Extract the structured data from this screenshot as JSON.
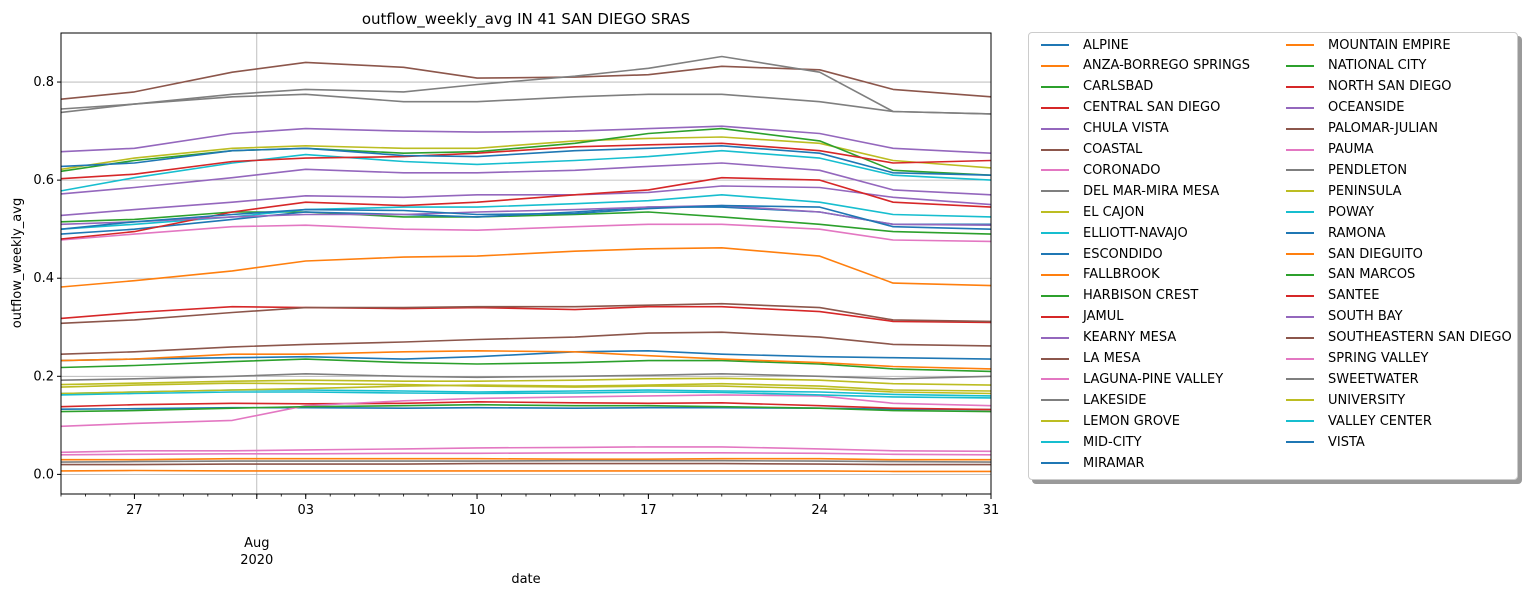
{
  "chart_data": {
    "type": "line",
    "title": "outflow_weekly_avg IN 41 SAN DIEGO SRAS",
    "xlabel": "date",
    "ylabel": "outflow_weekly_avg",
    "x_start": "2020-07-24",
    "x_end": "2020-08-31",
    "ylim": [
      -0.04,
      0.9
    ],
    "grid": true,
    "legend_placement": "outside right",
    "x_ticks": [
      {
        "date": "2020-07-27",
        "label": "27"
      },
      {
        "date": "2020-08-01",
        "label": "Aug"
      },
      {
        "date": "2020-08-03",
        "label": "03"
      },
      {
        "date": "2020-08-10",
        "label": "10"
      },
      {
        "date": "2020-08-17",
        "label": "17"
      },
      {
        "date": "2020-08-24",
        "label": "24"
      },
      {
        "date": "2020-08-31",
        "label": "31"
      }
    ],
    "x_year_label": "2020",
    "y_ticks": [
      0.0,
      0.2,
      0.4,
      0.6,
      0.8
    ],
    "y_tick_labels": [
      "0.0",
      "0.2",
      "0.4",
      "0.6",
      "0.8"
    ],
    "x": [
      "2020-07-24",
      "2020-07-27",
      "2020-07-31",
      "2020-08-03",
      "2020-08-07",
      "2020-08-10",
      "2020-08-14",
      "2020-08-17",
      "2020-08-20",
      "2020-08-24",
      "2020-08-27",
      "2020-08-31"
    ],
    "series": [
      {
        "name": "ALPINE",
        "color": "#1f77b4",
        "values": [
          0.133,
          0.134,
          0.136,
          0.136,
          0.135,
          0.136,
          0.135,
          0.136,
          0.136,
          0.135,
          0.133,
          0.132
        ]
      },
      {
        "name": "ANZA-BORREGO SPRINGS",
        "color": "#ff7f0e",
        "values": [
          0.007,
          0.008,
          0.007,
          0.007,
          0.007,
          0.007,
          0.007,
          0.007,
          0.007,
          0.007,
          0.006,
          0.006
        ]
      },
      {
        "name": "CARLSBAD",
        "color": "#2ca02c",
        "values": [
          0.515,
          0.52,
          0.535,
          0.535,
          0.525,
          0.525,
          0.53,
          0.535,
          0.525,
          0.51,
          0.495,
          0.49
        ]
      },
      {
        "name": "CENTRAL SAN DIEGO",
        "color": "#d62728",
        "values": [
          0.138,
          0.142,
          0.145,
          0.144,
          0.145,
          0.148,
          0.146,
          0.145,
          0.146,
          0.14,
          0.135,
          0.132
        ]
      },
      {
        "name": "CHULA VISTA",
        "color": "#9467bd",
        "values": [
          0.528,
          0.54,
          0.555,
          0.568,
          0.565,
          0.57,
          0.57,
          0.575,
          0.588,
          0.585,
          0.565,
          0.55
        ]
      },
      {
        "name": "COASTAL",
        "color": "#8c564b",
        "values": [
          0.245,
          0.25,
          0.26,
          0.265,
          0.27,
          0.275,
          0.28,
          0.288,
          0.29,
          0.28,
          0.265,
          0.262
        ]
      },
      {
        "name": "CORONADO",
        "color": "#e377c2",
        "values": [
          0.045,
          0.048,
          0.048,
          0.05,
          0.052,
          0.054,
          0.055,
          0.056,
          0.056,
          0.052,
          0.048,
          0.047
        ]
      },
      {
        "name": "DEL MAR-MIRA MESA",
        "color": "#7f7f7f",
        "values": [
          0.745,
          0.755,
          0.77,
          0.775,
          0.76,
          0.76,
          0.77,
          0.775,
          0.775,
          0.76,
          0.74,
          0.735
        ]
      },
      {
        "name": "EL CAJON",
        "color": "#bcbd22",
        "values": [
          0.178,
          0.182,
          0.186,
          0.185,
          0.183,
          0.18,
          0.178,
          0.18,
          0.18,
          0.175,
          0.168,
          0.165
        ]
      },
      {
        "name": "ELLIOTT-NAVAJO",
        "color": "#17becf",
        "values": [
          0.165,
          0.168,
          0.172,
          0.172,
          0.17,
          0.168,
          0.17,
          0.172,
          0.17,
          0.168,
          0.163,
          0.16
        ]
      },
      {
        "name": "ESCONDIDO",
        "color": "#1f77b4",
        "values": [
          0.232,
          0.235,
          0.238,
          0.24,
          0.235,
          0.24,
          0.25,
          0.252,
          0.245,
          0.24,
          0.238,
          0.235
        ]
      },
      {
        "name": "FALLBROOK",
        "color": "#ff7f0e",
        "values": [
          0.382,
          0.395,
          0.415,
          0.435,
          0.443,
          0.445,
          0.455,
          0.46,
          0.462,
          0.445,
          0.39,
          0.385
        ]
      },
      {
        "name": "HARBISON CREST",
        "color": "#2ca02c",
        "values": [
          0.218,
          0.222,
          0.23,
          0.235,
          0.228,
          0.225,
          0.228,
          0.232,
          0.232,
          0.225,
          0.215,
          0.21
        ]
      },
      {
        "name": "JAMUL",
        "color": "#d62728",
        "values": [
          0.318,
          0.33,
          0.342,
          0.34,
          0.338,
          0.34,
          0.336,
          0.342,
          0.342,
          0.332,
          0.312,
          0.31
        ]
      },
      {
        "name": "KEARNY MESA",
        "color": "#9467bd",
        "values": [
          0.658,
          0.665,
          0.695,
          0.705,
          0.7,
          0.698,
          0.7,
          0.705,
          0.71,
          0.695,
          0.665,
          0.655
        ]
      },
      {
        "name": "LA MESA",
        "color": "#8c564b",
        "values": [
          0.765,
          0.78,
          0.82,
          0.84,
          0.83,
          0.808,
          0.81,
          0.815,
          0.832,
          0.825,
          0.785,
          0.77
        ]
      },
      {
        "name": "LAGUNA-PINE VALLEY",
        "color": "#e377c2",
        "values": [
          0.098,
          0.104,
          0.11,
          0.14,
          0.15,
          0.155,
          0.158,
          0.16,
          0.162,
          0.16,
          0.145,
          0.14
        ]
      },
      {
        "name": "LAKESIDE",
        "color": "#7f7f7f",
        "values": [
          0.192,
          0.195,
          0.2,
          0.205,
          0.2,
          0.198,
          0.2,
          0.202,
          0.205,
          0.2,
          0.195,
          0.2
        ]
      },
      {
        "name": "LEMON GROVE",
        "color": "#bcbd22",
        "values": [
          0.622,
          0.645,
          0.665,
          0.67,
          0.665,
          0.665,
          0.68,
          0.685,
          0.688,
          0.675,
          0.64,
          0.625
        ]
      },
      {
        "name": "MID-CITY",
        "color": "#17becf",
        "values": [
          0.578,
          0.605,
          0.635,
          0.652,
          0.638,
          0.632,
          0.64,
          0.648,
          0.66,
          0.645,
          0.61,
          0.6
        ]
      },
      {
        "name": "MIRAMAR",
        "color": "#1f77b4",
        "values": [
          0.49,
          0.5,
          0.52,
          0.535,
          0.53,
          0.525,
          0.535,
          0.545,
          0.545,
          0.535,
          0.51,
          0.51
        ]
      },
      {
        "name": "MOUNTAIN EMPIRE",
        "color": "#ff7f0e",
        "values": [
          0.03,
          0.03,
          0.032,
          0.032,
          0.032,
          0.032,
          0.031,
          0.031,
          0.032,
          0.032,
          0.03,
          0.03
        ]
      },
      {
        "name": "NATIONAL CITY",
        "color": "#2ca02c",
        "values": [
          0.618,
          0.64,
          0.66,
          0.665,
          0.655,
          0.658,
          0.675,
          0.695,
          0.705,
          0.68,
          0.62,
          0.61
        ]
      },
      {
        "name": "NORTH SAN DIEGO",
        "color": "#d62728",
        "values": [
          0.603,
          0.612,
          0.638,
          0.645,
          0.648,
          0.655,
          0.668,
          0.672,
          0.675,
          0.66,
          0.635,
          0.64
        ]
      },
      {
        "name": "OCEANSIDE",
        "color": "#9467bd",
        "values": [
          0.572,
          0.585,
          0.605,
          0.622,
          0.615,
          0.615,
          0.62,
          0.628,
          0.635,
          0.62,
          0.58,
          0.57
        ]
      },
      {
        "name": "PALOMAR-JULIAN",
        "color": "#8c564b",
        "values": [
          0.308,
          0.315,
          0.33,
          0.34,
          0.34,
          0.342,
          0.342,
          0.345,
          0.348,
          0.34,
          0.315,
          0.312
        ]
      },
      {
        "name": "PAUMA",
        "color": "#e377c2",
        "values": [
          0.478,
          0.49,
          0.505,
          0.508,
          0.5,
          0.498,
          0.505,
          0.51,
          0.51,
          0.5,
          0.478,
          0.475
        ]
      },
      {
        "name": "PENDLETON",
        "color": "#7f7f7f",
        "values": [
          0.738,
          0.755,
          0.775,
          0.785,
          0.78,
          0.795,
          0.812,
          0.828,
          0.852,
          0.82,
          0.74,
          0.735
        ]
      },
      {
        "name": "PENINSULA",
        "color": "#bcbd22",
        "values": [
          0.183,
          0.186,
          0.19,
          0.192,
          0.19,
          0.19,
          0.192,
          0.195,
          0.196,
          0.192,
          0.185,
          0.182
        ]
      },
      {
        "name": "POWAY",
        "color": "#17becf",
        "values": [
          0.5,
          0.51,
          0.525,
          0.54,
          0.545,
          0.545,
          0.552,
          0.558,
          0.57,
          0.555,
          0.53,
          0.525
        ]
      },
      {
        "name": "RAMONA",
        "color": "#1f77b4",
        "values": [
          0.628,
          0.635,
          0.66,
          0.665,
          0.65,
          0.648,
          0.66,
          0.665,
          0.67,
          0.655,
          0.615,
          0.61
        ]
      },
      {
        "name": "SAN DIEGUITO",
        "color": "#ff7f0e",
        "values": [
          0.232,
          0.235,
          0.245,
          0.245,
          0.25,
          0.252,
          0.25,
          0.242,
          0.235,
          0.228,
          0.22,
          0.215
        ]
      },
      {
        "name": "SAN MARCOS",
        "color": "#2ca02c",
        "values": [
          0.128,
          0.13,
          0.135,
          0.138,
          0.14,
          0.142,
          0.14,
          0.14,
          0.138,
          0.135,
          0.13,
          0.128
        ]
      },
      {
        "name": "SANTEE",
        "color": "#d62728",
        "values": [
          0.48,
          0.495,
          0.535,
          0.555,
          0.548,
          0.555,
          0.57,
          0.58,
          0.605,
          0.6,
          0.555,
          0.545
        ]
      },
      {
        "name": "SOUTH BAY",
        "color": "#9467bd",
        "values": [
          0.51,
          0.515,
          0.525,
          0.53,
          0.53,
          0.535,
          0.54,
          0.545,
          0.548,
          0.535,
          0.51,
          0.508
        ]
      },
      {
        "name": "SOUTHEASTERN SAN DIEGO",
        "color": "#8c564b",
        "values": [
          0.02,
          0.02,
          0.021,
          0.021,
          0.021,
          0.022,
          0.022,
          0.022,
          0.022,
          0.021,
          0.02,
          0.02
        ]
      },
      {
        "name": "SPRING VALLEY",
        "color": "#e377c2",
        "values": [
          0.04,
          0.041,
          0.042,
          0.042,
          0.043,
          0.043,
          0.044,
          0.044,
          0.044,
          0.043,
          0.041,
          0.04
        ]
      },
      {
        "name": "SWEETWATER",
        "color": "#7f7f7f",
        "values": [
          0.025,
          0.026,
          0.027,
          0.027,
          0.027,
          0.027,
          0.028,
          0.028,
          0.028,
          0.027,
          0.026,
          0.025
        ]
      },
      {
        "name": "UNIVERSITY",
        "color": "#bcbd22",
        "values": [
          0.165,
          0.168,
          0.172,
          0.175,
          0.18,
          0.182,
          0.18,
          0.182,
          0.185,
          0.18,
          0.172,
          0.17
        ]
      },
      {
        "name": "VALLEY CENTER",
        "color": "#17becf",
        "values": [
          0.162,
          0.165,
          0.168,
          0.168,
          0.166,
          0.165,
          0.166,
          0.168,
          0.167,
          0.162,
          0.158,
          0.156
        ]
      },
      {
        "name": "VISTA",
        "color": "#1f77b4",
        "values": [
          0.5,
          0.515,
          0.53,
          0.54,
          0.538,
          0.53,
          0.532,
          0.542,
          0.548,
          0.545,
          0.505,
          0.5
        ]
      }
    ]
  }
}
